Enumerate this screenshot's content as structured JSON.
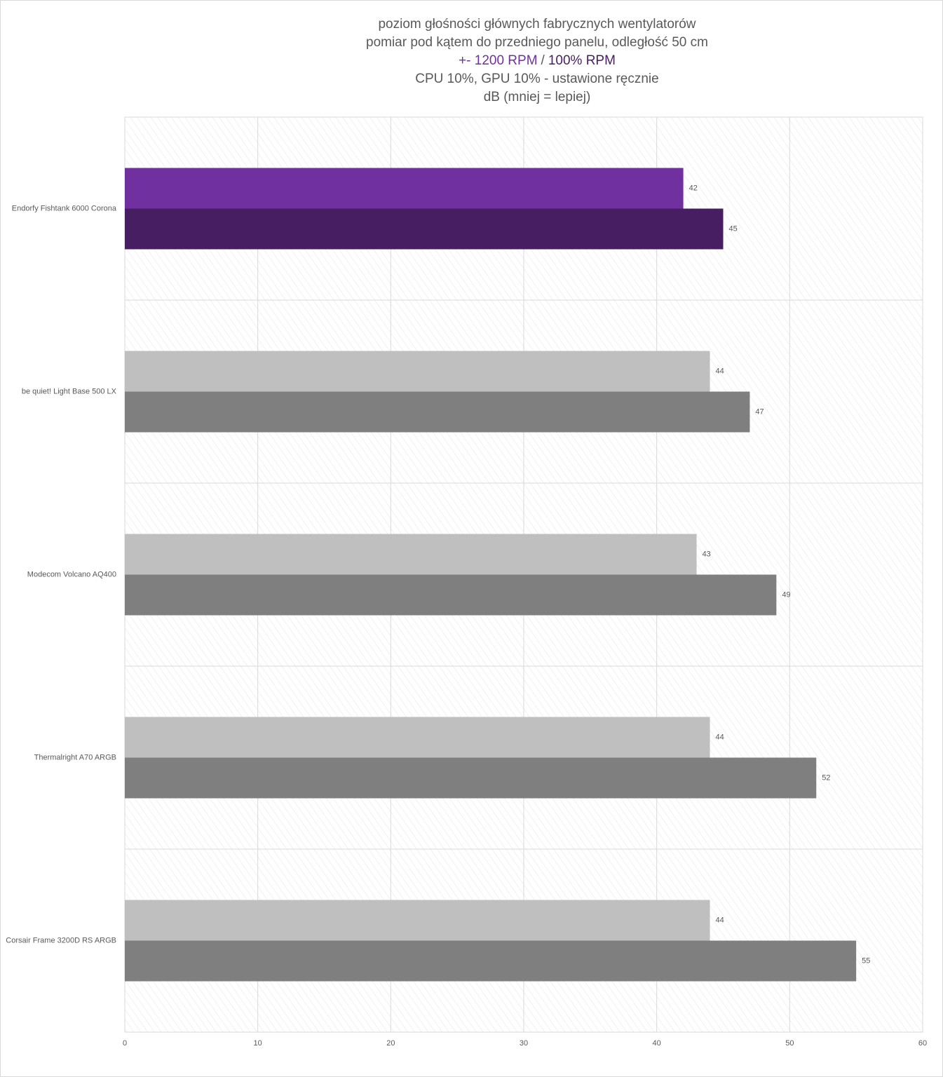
{
  "chart_data": {
    "type": "bar",
    "orientation": "horizontal",
    "title": [
      "poziom głośności głównych fabrycznych wentylatorów",
      "pomiar pod kątem do przedniego panelu, odległość 50 cm"
    ],
    "legend_separator": "/",
    "subtitle": [
      "CPU 10%, GPU 10% - ustawione ręcznie",
      "dB (mniej = lepiej)"
    ],
    "categories": [
      "Endorfy Fishtank 6000 Corona",
      "be quiet! Light Base 500 LX",
      "Modecom Volcano AQ400",
      "Thermalright A70 ARGB",
      "Corsair Frame 3200D RS ARGB"
    ],
    "series": [
      {
        "name": "+- 1200 RPM",
        "color": "#7030a0",
        "colors": [
          "#7030a0",
          "#bfbfbf",
          "#bfbfbf",
          "#bfbfbf",
          "#bfbfbf"
        ],
        "values": [
          42,
          44,
          43,
          44,
          44
        ]
      },
      {
        "name": "100% RPM",
        "color": "#471e62",
        "colors": [
          "#471e62",
          "#7f7f7f",
          "#7f7f7f",
          "#7f7f7f",
          "#7f7f7f"
        ],
        "values": [
          45,
          47,
          49,
          52,
          55
        ]
      }
    ],
    "xlim": [
      0,
      60
    ],
    "xticks": [
      0,
      10,
      20,
      30,
      40,
      50,
      60
    ],
    "grid": true
  }
}
